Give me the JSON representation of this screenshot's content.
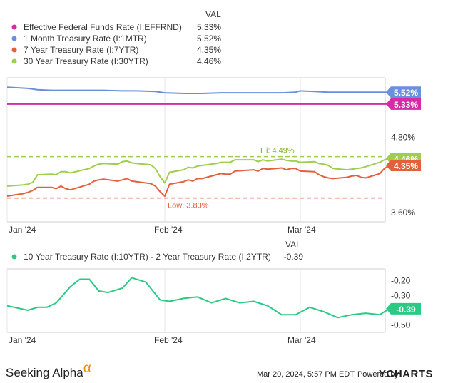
{
  "legend_top": {
    "header": "VAL",
    "items": [
      {
        "label": "Effective Federal Funds Rate (I:EFFRND)",
        "value": "5.33%",
        "color": "#d62aa7"
      },
      {
        "label": "1 Month Treasury Rate (I:1MTR)",
        "value": "5.52%",
        "color": "#6a8fdd"
      },
      {
        "label": "7 Year Treasury Rate (I:7YTR)",
        "value": "4.35%",
        "color": "#e2603c"
      },
      {
        "label": "30 Year Treasury Rate (I:30YTR)",
        "value": "4.46%",
        "color": "#9fcd4c"
      }
    ]
  },
  "legend_bottom": {
    "header": "VAL",
    "items": [
      {
        "label": "10 Year Treasury Rate (I:10YTR) - 2 Year Treasury Rate (I:2YTR)",
        "value": "-0.39",
        "color": "#2cc985"
      }
    ]
  },
  "footer": {
    "brand": "Seeking Alpha",
    "brand_mark": "α",
    "date_text": "Mar 20, 2024, 5:57 PM EDT",
    "powered_by": "Powered by",
    "provider": "YCHARTS"
  },
  "chart_data": [
    {
      "type": "line",
      "x_tick_labels": [
        "Jan '24",
        "Feb '24",
        "Mar '24"
      ],
      "x_range": [
        "2024-01-01",
        "2024-03-20"
      ],
      "y_tick_labels": [
        "4.80%",
        "3.60%"
      ],
      "ylim": [
        3.45,
        5.75
      ],
      "annotations": {
        "hi_label": "Hi: 4.49%",
        "hi_value": 4.49,
        "low_label": "Low: 3.83%",
        "low_value": 3.83
      },
      "end_labels": [
        {
          "text": "5.52%",
          "value": 5.52,
          "color": "#6a8fdd"
        },
        {
          "text": "5.33%",
          "value": 5.33,
          "color": "#d62aa7"
        },
        {
          "text": "4.46%",
          "value": 4.46,
          "color": "#9fcd4c"
        },
        {
          "text": "4.35%",
          "value": 4.35,
          "color": "#e2603c"
        }
      ],
      "series": [
        {
          "name": "Effective Federal Funds Rate (I:EFFRND)",
          "color": "#d62aa7",
          "x": [
            "2024-01-01",
            "2024-03-20"
          ],
          "y": [
            5.33,
            5.33
          ]
        },
        {
          "name": "1 Month Treasury Rate (I:1MTR)",
          "color": "#6a8fdd",
          "x": [
            "2024-01-01",
            "2024-01-03",
            "2024-01-05",
            "2024-01-08",
            "2024-01-10",
            "2024-01-12",
            "2024-01-16",
            "2024-01-19",
            "2024-01-23",
            "2024-01-26",
            "2024-01-30",
            "2024-02-01",
            "2024-02-05",
            "2024-02-09",
            "2024-02-13",
            "2024-02-16",
            "2024-02-21",
            "2024-02-26",
            "2024-02-29",
            "2024-03-01",
            "2024-03-04",
            "2024-03-07",
            "2024-03-11",
            "2024-03-14",
            "2024-03-18",
            "2024-03-20"
          ],
          "y": [
            5.6,
            5.58,
            5.56,
            5.55,
            5.55,
            5.55,
            5.55,
            5.55,
            5.54,
            5.54,
            5.53,
            5.51,
            5.5,
            5.5,
            5.51,
            5.51,
            5.51,
            5.51,
            5.52,
            5.54,
            5.53,
            5.52,
            5.52,
            5.52,
            5.52,
            5.52
          ]
        },
        {
          "name": "7 Year Treasury Rate (I:7YTR)",
          "color": "#e2603c",
          "x": [
            "2024-01-01",
            "2024-01-02",
            "2024-01-03",
            "2024-01-04",
            "2024-01-05",
            "2024-01-08",
            "2024-01-09",
            "2024-01-10",
            "2024-01-11",
            "2024-01-12",
            "2024-01-16",
            "2024-01-17",
            "2024-01-18",
            "2024-01-19",
            "2024-01-22",
            "2024-01-23",
            "2024-01-24",
            "2024-01-25",
            "2024-01-26",
            "2024-01-29",
            "2024-01-30",
            "2024-01-31",
            "2024-02-01",
            "2024-02-02",
            "2024-02-05",
            "2024-02-06",
            "2024-02-07",
            "2024-02-08",
            "2024-02-09",
            "2024-02-12",
            "2024-02-13",
            "2024-02-14",
            "2024-02-15",
            "2024-02-16",
            "2024-02-20",
            "2024-02-21",
            "2024-02-22",
            "2024-02-23",
            "2024-02-26",
            "2024-02-27",
            "2024-02-28",
            "2024-02-29",
            "2024-03-01",
            "2024-03-04",
            "2024-03-05",
            "2024-03-06",
            "2024-03-07",
            "2024-03-08",
            "2024-03-11",
            "2024-03-12",
            "2024-03-13",
            "2024-03-14",
            "2024-03-15",
            "2024-03-18",
            "2024-03-19",
            "2024-03-20"
          ],
          "y": [
            3.86,
            3.9,
            3.92,
            3.95,
            4.0,
            4.0,
            3.98,
            4.02,
            3.98,
            3.96,
            4.05,
            4.1,
            4.12,
            4.13,
            4.1,
            4.12,
            4.14,
            4.1,
            4.09,
            4.06,
            4.02,
            3.93,
            3.86,
            4.05,
            4.09,
            4.12,
            4.1,
            4.14,
            4.14,
            4.2,
            4.22,
            4.21,
            4.21,
            4.26,
            4.28,
            4.26,
            4.3,
            4.29,
            4.31,
            4.28,
            4.3,
            4.3,
            4.26,
            4.25,
            4.2,
            4.17,
            4.15,
            4.14,
            4.16,
            4.18,
            4.19,
            4.16,
            4.15,
            4.22,
            4.3,
            4.35
          ]
        },
        {
          "name": "30 Year Treasury Rate (I:30YTR)",
          "color": "#9fcd4c",
          "x": [
            "2024-01-01",
            "2024-01-02",
            "2024-01-03",
            "2024-01-04",
            "2024-01-05",
            "2024-01-08",
            "2024-01-09",
            "2024-01-10",
            "2024-01-11",
            "2024-01-12",
            "2024-01-16",
            "2024-01-17",
            "2024-01-18",
            "2024-01-19",
            "2024-01-22",
            "2024-01-23",
            "2024-01-24",
            "2024-01-25",
            "2024-01-26",
            "2024-01-29",
            "2024-01-30",
            "2024-01-31",
            "2024-02-01",
            "2024-02-02",
            "2024-02-05",
            "2024-02-06",
            "2024-02-07",
            "2024-02-08",
            "2024-02-09",
            "2024-02-12",
            "2024-02-13",
            "2024-02-14",
            "2024-02-15",
            "2024-02-16",
            "2024-02-20",
            "2024-02-21",
            "2024-02-22",
            "2024-02-23",
            "2024-02-26",
            "2024-02-27",
            "2024-02-28",
            "2024-02-29",
            "2024-03-01",
            "2024-03-04",
            "2024-03-05",
            "2024-03-06",
            "2024-03-07",
            "2024-03-08",
            "2024-03-11",
            "2024-03-12",
            "2024-03-13",
            "2024-03-14",
            "2024-03-15",
            "2024-03-18",
            "2024-03-19",
            "2024-03-20"
          ],
          "y": [
            4.02,
            4.04,
            4.05,
            4.08,
            4.2,
            4.21,
            4.2,
            4.25,
            4.25,
            4.23,
            4.3,
            4.34,
            4.37,
            4.38,
            4.37,
            4.41,
            4.42,
            4.39,
            4.38,
            4.36,
            4.3,
            4.17,
            4.07,
            4.24,
            4.28,
            4.32,
            4.31,
            4.34,
            4.35,
            4.38,
            4.4,
            4.4,
            4.4,
            4.44,
            4.44,
            4.41,
            4.44,
            4.42,
            4.45,
            4.43,
            4.42,
            4.42,
            4.4,
            4.41,
            4.38,
            4.37,
            4.35,
            4.3,
            4.28,
            4.29,
            4.3,
            4.31,
            4.33,
            4.4,
            4.44,
            4.46
          ]
        }
      ]
    },
    {
      "type": "line",
      "x_tick_labels": [
        "Jan '24",
        "Feb '24",
        "Mar '24"
      ],
      "x_range": [
        "2024-01-01",
        "2024-03-20"
      ],
      "y_tick_labels": [
        "-0.20",
        "-0.30",
        "-0.50"
      ],
      "ylim": [
        -0.55,
        -0.12
      ],
      "end_labels": [
        {
          "text": "-0.39",
          "value": -0.39,
          "color": "#2cc985"
        }
      ],
      "series": [
        {
          "name": "10 Year Treasury Rate (I:10YTR) - 2 Year Treasury Rate (I:2YTR)",
          "color": "#2cc985",
          "x": [
            "2024-01-01",
            "2024-01-03",
            "2024-01-05",
            "2024-01-07",
            "2024-01-09",
            "2024-01-12",
            "2024-01-14",
            "2024-01-16",
            "2024-01-18",
            "2024-01-20",
            "2024-01-23",
            "2024-01-25",
            "2024-01-28",
            "2024-01-31",
            "2024-02-02",
            "2024-02-05",
            "2024-02-08",
            "2024-02-11",
            "2024-02-14",
            "2024-02-17",
            "2024-02-20",
            "2024-02-23",
            "2024-02-26",
            "2024-02-29",
            "2024-03-03",
            "2024-03-06",
            "2024-03-09",
            "2024-03-12",
            "2024-03-15",
            "2024-03-18",
            "2024-03-20"
          ],
          "y": [
            -0.37,
            -0.4,
            -0.38,
            -0.38,
            -0.35,
            -0.24,
            -0.19,
            -0.19,
            -0.27,
            -0.28,
            -0.25,
            -0.18,
            -0.21,
            -0.33,
            -0.34,
            -0.32,
            -0.31,
            -0.35,
            -0.32,
            -0.35,
            -0.34,
            -0.37,
            -0.43,
            -0.43,
            -0.38,
            -0.41,
            -0.45,
            -0.43,
            -0.42,
            -0.43,
            -0.39
          ]
        }
      ]
    }
  ]
}
